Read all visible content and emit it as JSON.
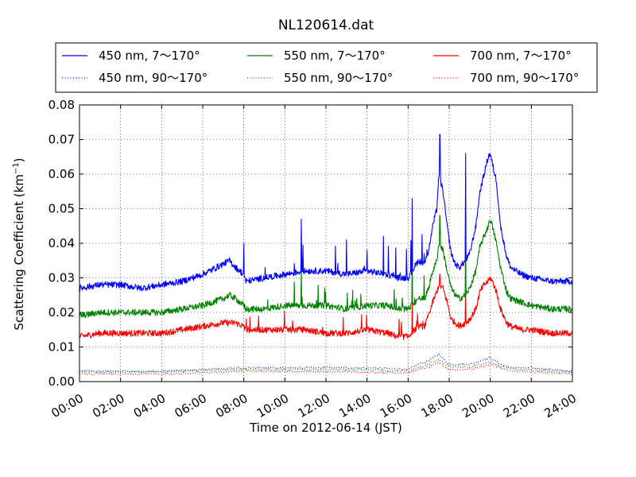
{
  "chart_data": {
    "type": "line",
    "title": "NL120614.dat",
    "xlabel": "Time on 2012-06-14 (JST)",
    "ylabel": "Scattering Coefficient (km",
    "ylabel_sup": "−1",
    "ylabel_tail": ")",
    "xlim_hours": [
      0,
      24
    ],
    "ylim": [
      0,
      0.08
    ],
    "grid": true,
    "legend_position": "top (above plot), 3 columns",
    "x_ticks": [
      {
        "hour": 0,
        "label": "00:00"
      },
      {
        "hour": 2,
        "label": "02:00"
      },
      {
        "hour": 4,
        "label": "04:00"
      },
      {
        "hour": 6,
        "label": "06:00"
      },
      {
        "hour": 8,
        "label": "08:00"
      },
      {
        "hour": 10,
        "label": "10:00"
      },
      {
        "hour": 12,
        "label": "12:00"
      },
      {
        "hour": 14,
        "label": "14:00"
      },
      {
        "hour": 16,
        "label": "16:00"
      },
      {
        "hour": 18,
        "label": "18:00"
      },
      {
        "hour": 20,
        "label": "20:00"
      },
      {
        "hour": 22,
        "label": "22:00"
      },
      {
        "hour": 24,
        "label": "24:00"
      }
    ],
    "y_ticks": [
      {
        "value": 0.0,
        "label": "0.00"
      },
      {
        "value": 0.01,
        "label": "0.01"
      },
      {
        "value": 0.02,
        "label": "0.02"
      },
      {
        "value": 0.03,
        "label": "0.03"
      },
      {
        "value": 0.04,
        "label": "0.04"
      },
      {
        "value": 0.05,
        "label": "0.05"
      },
      {
        "value": 0.06,
        "label": "0.06"
      },
      {
        "value": 0.07,
        "label": "0.07"
      },
      {
        "value": 0.08,
        "label": "0.08"
      }
    ],
    "series": [
      {
        "name": "450 nm, 7～170°",
        "color": "#0000ff",
        "style": "solid",
        "x": [
          0,
          1,
          2,
          3,
          4,
          5,
          6,
          7,
          7.3,
          7.6,
          8,
          8.1,
          9,
          10,
          11,
          12,
          13,
          14,
          15,
          15.5,
          16,
          16.5,
          16.8,
          17,
          17.2,
          17.4,
          17.5,
          17.7,
          17.9,
          18.1,
          18.3,
          18.5,
          18.8,
          19,
          19.3,
          19.5,
          19.7,
          19.9,
          20,
          20.1,
          20.3,
          20.5,
          20.8,
          21,
          21.5,
          22,
          23,
          24
        ],
        "y": [
          0.027,
          0.028,
          0.028,
          0.027,
          0.028,
          0.029,
          0.031,
          0.034,
          0.035,
          0.033,
          0.031,
          0.029,
          0.03,
          0.031,
          0.032,
          0.032,
          0.031,
          0.032,
          0.031,
          0.03,
          0.03,
          0.035,
          0.034,
          0.038,
          0.045,
          0.05,
          0.06,
          0.055,
          0.045,
          0.037,
          0.034,
          0.033,
          0.035,
          0.037,
          0.045,
          0.055,
          0.06,
          0.065,
          0.066,
          0.063,
          0.058,
          0.045,
          0.036,
          0.033,
          0.031,
          0.03,
          0.029,
          0.029
        ]
      },
      {
        "name": "550 nm, 7～170°",
        "color": "#008000",
        "style": "solid",
        "x": [
          0,
          1,
          2,
          3,
          4,
          5,
          6,
          7,
          7.3,
          7.6,
          8,
          8.1,
          9,
          10,
          11,
          12,
          13,
          14,
          15,
          15.5,
          16,
          16.5,
          16.8,
          17,
          17.2,
          17.4,
          17.5,
          17.7,
          17.9,
          18.1,
          18.3,
          18.5,
          18.8,
          19,
          19.3,
          19.5,
          19.7,
          19.9,
          20,
          20.1,
          20.3,
          20.5,
          20.8,
          21,
          21.5,
          22,
          23,
          24
        ],
        "y": [
          0.019,
          0.02,
          0.02,
          0.02,
          0.02,
          0.021,
          0.022,
          0.024,
          0.025,
          0.024,
          0.022,
          0.021,
          0.021,
          0.022,
          0.022,
          0.022,
          0.021,
          0.022,
          0.022,
          0.021,
          0.021,
          0.024,
          0.024,
          0.027,
          0.032,
          0.035,
          0.04,
          0.038,
          0.032,
          0.027,
          0.025,
          0.024,
          0.025,
          0.027,
          0.032,
          0.039,
          0.042,
          0.045,
          0.047,
          0.045,
          0.04,
          0.033,
          0.026,
          0.024,
          0.023,
          0.022,
          0.021,
          0.021
        ]
      },
      {
        "name": "700 nm, 7～170°",
        "color": "#ff0000",
        "style": "solid",
        "x": [
          0,
          1,
          2,
          3,
          4,
          5,
          6,
          7,
          7.3,
          7.6,
          8,
          8.1,
          9,
          10,
          11,
          12,
          13,
          14,
          15,
          15.5,
          16,
          16.5,
          16.8,
          17,
          17.2,
          17.4,
          17.5,
          17.7,
          17.9,
          18.1,
          18.3,
          18.5,
          18.8,
          19,
          19.3,
          19.5,
          19.7,
          19.9,
          20,
          20.1,
          20.3,
          20.5,
          20.8,
          21,
          21.5,
          22,
          23,
          24
        ],
        "y": [
          0.013,
          0.014,
          0.014,
          0.014,
          0.014,
          0.015,
          0.016,
          0.017,
          0.017,
          0.017,
          0.016,
          0.015,
          0.015,
          0.015,
          0.015,
          0.014,
          0.014,
          0.015,
          0.014,
          0.013,
          0.013,
          0.016,
          0.016,
          0.019,
          0.023,
          0.026,
          0.028,
          0.027,
          0.023,
          0.018,
          0.017,
          0.016,
          0.017,
          0.018,
          0.021,
          0.026,
          0.028,
          0.029,
          0.03,
          0.029,
          0.026,
          0.021,
          0.017,
          0.016,
          0.015,
          0.015,
          0.014,
          0.014
        ]
      },
      {
        "name": "450 nm, 90～170°",
        "color": "#0000ff",
        "style": "dotted",
        "x": [
          0,
          4,
          6,
          8,
          10,
          12,
          14,
          16,
          16.5,
          17,
          17.5,
          17.8,
          18,
          18.5,
          19,
          19.5,
          20,
          20.5,
          21,
          22,
          24
        ],
        "y": [
          0.003,
          0.003,
          0.0035,
          0.004,
          0.004,
          0.004,
          0.004,
          0.0035,
          0.005,
          0.006,
          0.008,
          0.006,
          0.005,
          0.005,
          0.005,
          0.006,
          0.007,
          0.005,
          0.004,
          0.004,
          0.003
        ]
      },
      {
        "name": "550 nm, 90～170°",
        "color": "#008000",
        "style": "dotted",
        "x": [
          0,
          4,
          6,
          8,
          10,
          12,
          14,
          16,
          16.5,
          17,
          17.5,
          17.8,
          18,
          18.5,
          19,
          19.5,
          20,
          20.5,
          21,
          22,
          24
        ],
        "y": [
          0.0028,
          0.0028,
          0.0032,
          0.0035,
          0.0035,
          0.0035,
          0.0035,
          0.003,
          0.0042,
          0.005,
          0.0065,
          0.005,
          0.0042,
          0.0042,
          0.0042,
          0.005,
          0.0058,
          0.0045,
          0.0035,
          0.0033,
          0.0028
        ]
      },
      {
        "name": "700 nm, 90～170°",
        "color": "#ff0000",
        "style": "dotted",
        "x": [
          0,
          4,
          6,
          8,
          10,
          12,
          14,
          16,
          16.5,
          17,
          17.5,
          17.8,
          18,
          18.5,
          19,
          19.5,
          20,
          20.5,
          21,
          22,
          24
        ],
        "y": [
          0.0022,
          0.0022,
          0.0026,
          0.003,
          0.003,
          0.0028,
          0.0028,
          0.0025,
          0.0035,
          0.0042,
          0.0055,
          0.0042,
          0.0036,
          0.0035,
          0.0035,
          0.0042,
          0.005,
          0.0038,
          0.003,
          0.0028,
          0.0023
        ]
      }
    ],
    "spikes": [
      {
        "series": 0,
        "hour": 8.0,
        "peak": 0.04
      },
      {
        "series": 0,
        "hour": 10.8,
        "peak": 0.047
      },
      {
        "series": 0,
        "hour": 13.0,
        "peak": 0.041
      },
      {
        "series": 0,
        "hour": 14.0,
        "peak": 0.038
      },
      {
        "series": 0,
        "hour": 14.8,
        "peak": 0.042
      },
      {
        "series": 0,
        "hour": 16.2,
        "peak": 0.053
      },
      {
        "series": 0,
        "hour": 17.55,
        "peak": 0.0715
      },
      {
        "series": 0,
        "hour": 18.8,
        "peak": 0.066
      },
      {
        "series": 1,
        "hour": 10.8,
        "peak": 0.034
      },
      {
        "series": 1,
        "hour": 16.2,
        "peak": 0.038
      },
      {
        "series": 1,
        "hour": 17.55,
        "peak": 0.048
      },
      {
        "series": 1,
        "hour": 18.8,
        "peak": 0.047
      },
      {
        "series": 2,
        "hour": 16.2,
        "peak": 0.024
      },
      {
        "series": 2,
        "hour": 17.55,
        "peak": 0.031
      },
      {
        "series": 2,
        "hour": 18.8,
        "peak": 0.029
      }
    ]
  }
}
